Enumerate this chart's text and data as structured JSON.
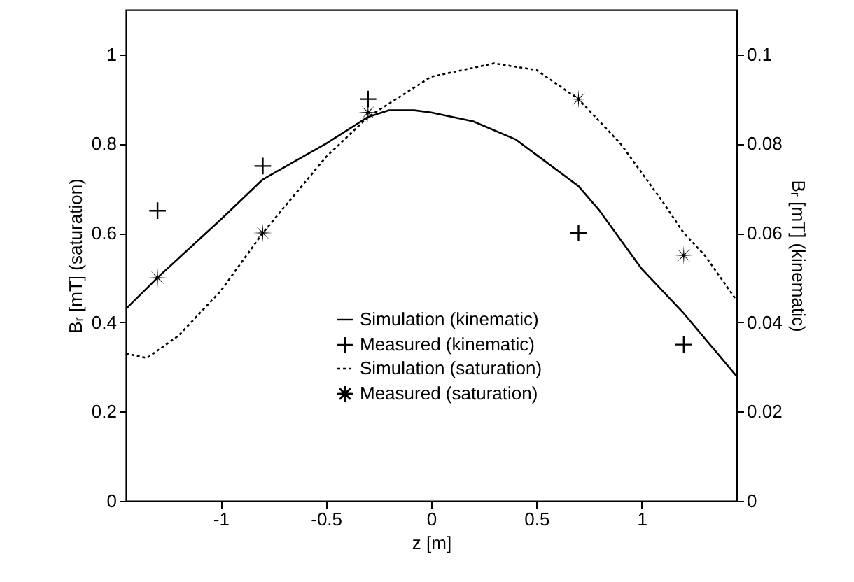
{
  "chart_data": {
    "type": "line",
    "xlabel": "z [m]",
    "ylabel": "Bᵣ [mT] (saturation)",
    "y2label": "Bᵣ [mT] (kinematic)",
    "xlim": [
      -1.45,
      1.45
    ],
    "xticks": [
      -1,
      -0.5,
      0,
      0.5,
      1
    ],
    "ylim": [
      0,
      1.1
    ],
    "yticks": [
      0,
      0.2,
      0.4,
      0.6,
      0.8,
      1
    ],
    "y2lim": [
      0,
      0.11
    ],
    "y2ticks": [
      0,
      0.02,
      0.04,
      0.06,
      0.08,
      0.1
    ],
    "grid": false,
    "legend": "bottom",
    "series": [
      {
        "name": "Simulation (kinematic)",
        "type": "line",
        "axis": "y2",
        "color": "#000000",
        "marker": "none",
        "line_style": "solid",
        "x": [
          -1.45,
          -1.3,
          -1.0,
          -0.8,
          -0.5,
          -0.3,
          -0.2,
          -0.08,
          0,
          0.2,
          0.4,
          0.5,
          0.7,
          0.8,
          1.0,
          1.2,
          1.45
        ],
        "values": [
          0.043,
          0.05,
          0.063,
          0.072,
          0.08,
          0.086,
          0.0875,
          0.0875,
          0.087,
          0.085,
          0.081,
          0.0775,
          0.0705,
          0.065,
          0.052,
          0.042,
          0.028
        ]
      },
      {
        "name": "Measured (kinematic)",
        "type": "scatter",
        "axis": "y2",
        "color": "#000000",
        "marker": "cross",
        "x": [
          -1.3,
          -0.8,
          -0.3,
          0.7,
          1.2
        ],
        "values": [
          0.065,
          0.075,
          0.09,
          0.06,
          0.035
        ]
      },
      {
        "name": "Simulation (saturation)",
        "type": "line",
        "axis": "y",
        "color": "#000000",
        "marker": "none",
        "line_style": "dotted",
        "x": [
          -1.45,
          -1.35,
          -1.2,
          -1.0,
          -0.8,
          -0.5,
          -0.3,
          0,
          0.3,
          0.5,
          0.7,
          0.9,
          1.1,
          1.2,
          1.3,
          1.45
        ],
        "values": [
          0.33,
          0.32,
          0.37,
          0.47,
          0.6,
          0.77,
          0.86,
          0.95,
          0.98,
          0.965,
          0.9,
          0.8,
          0.67,
          0.6,
          0.55,
          0.45
        ]
      },
      {
        "name": "Measured (saturation)",
        "type": "scatter",
        "axis": "y",
        "color": "#000000",
        "marker": "star",
        "x": [
          -1.3,
          -0.8,
          -0.3,
          0.7,
          1.2
        ],
        "values": [
          0.5,
          0.6,
          0.87,
          0.9,
          0.55
        ]
      }
    ]
  }
}
